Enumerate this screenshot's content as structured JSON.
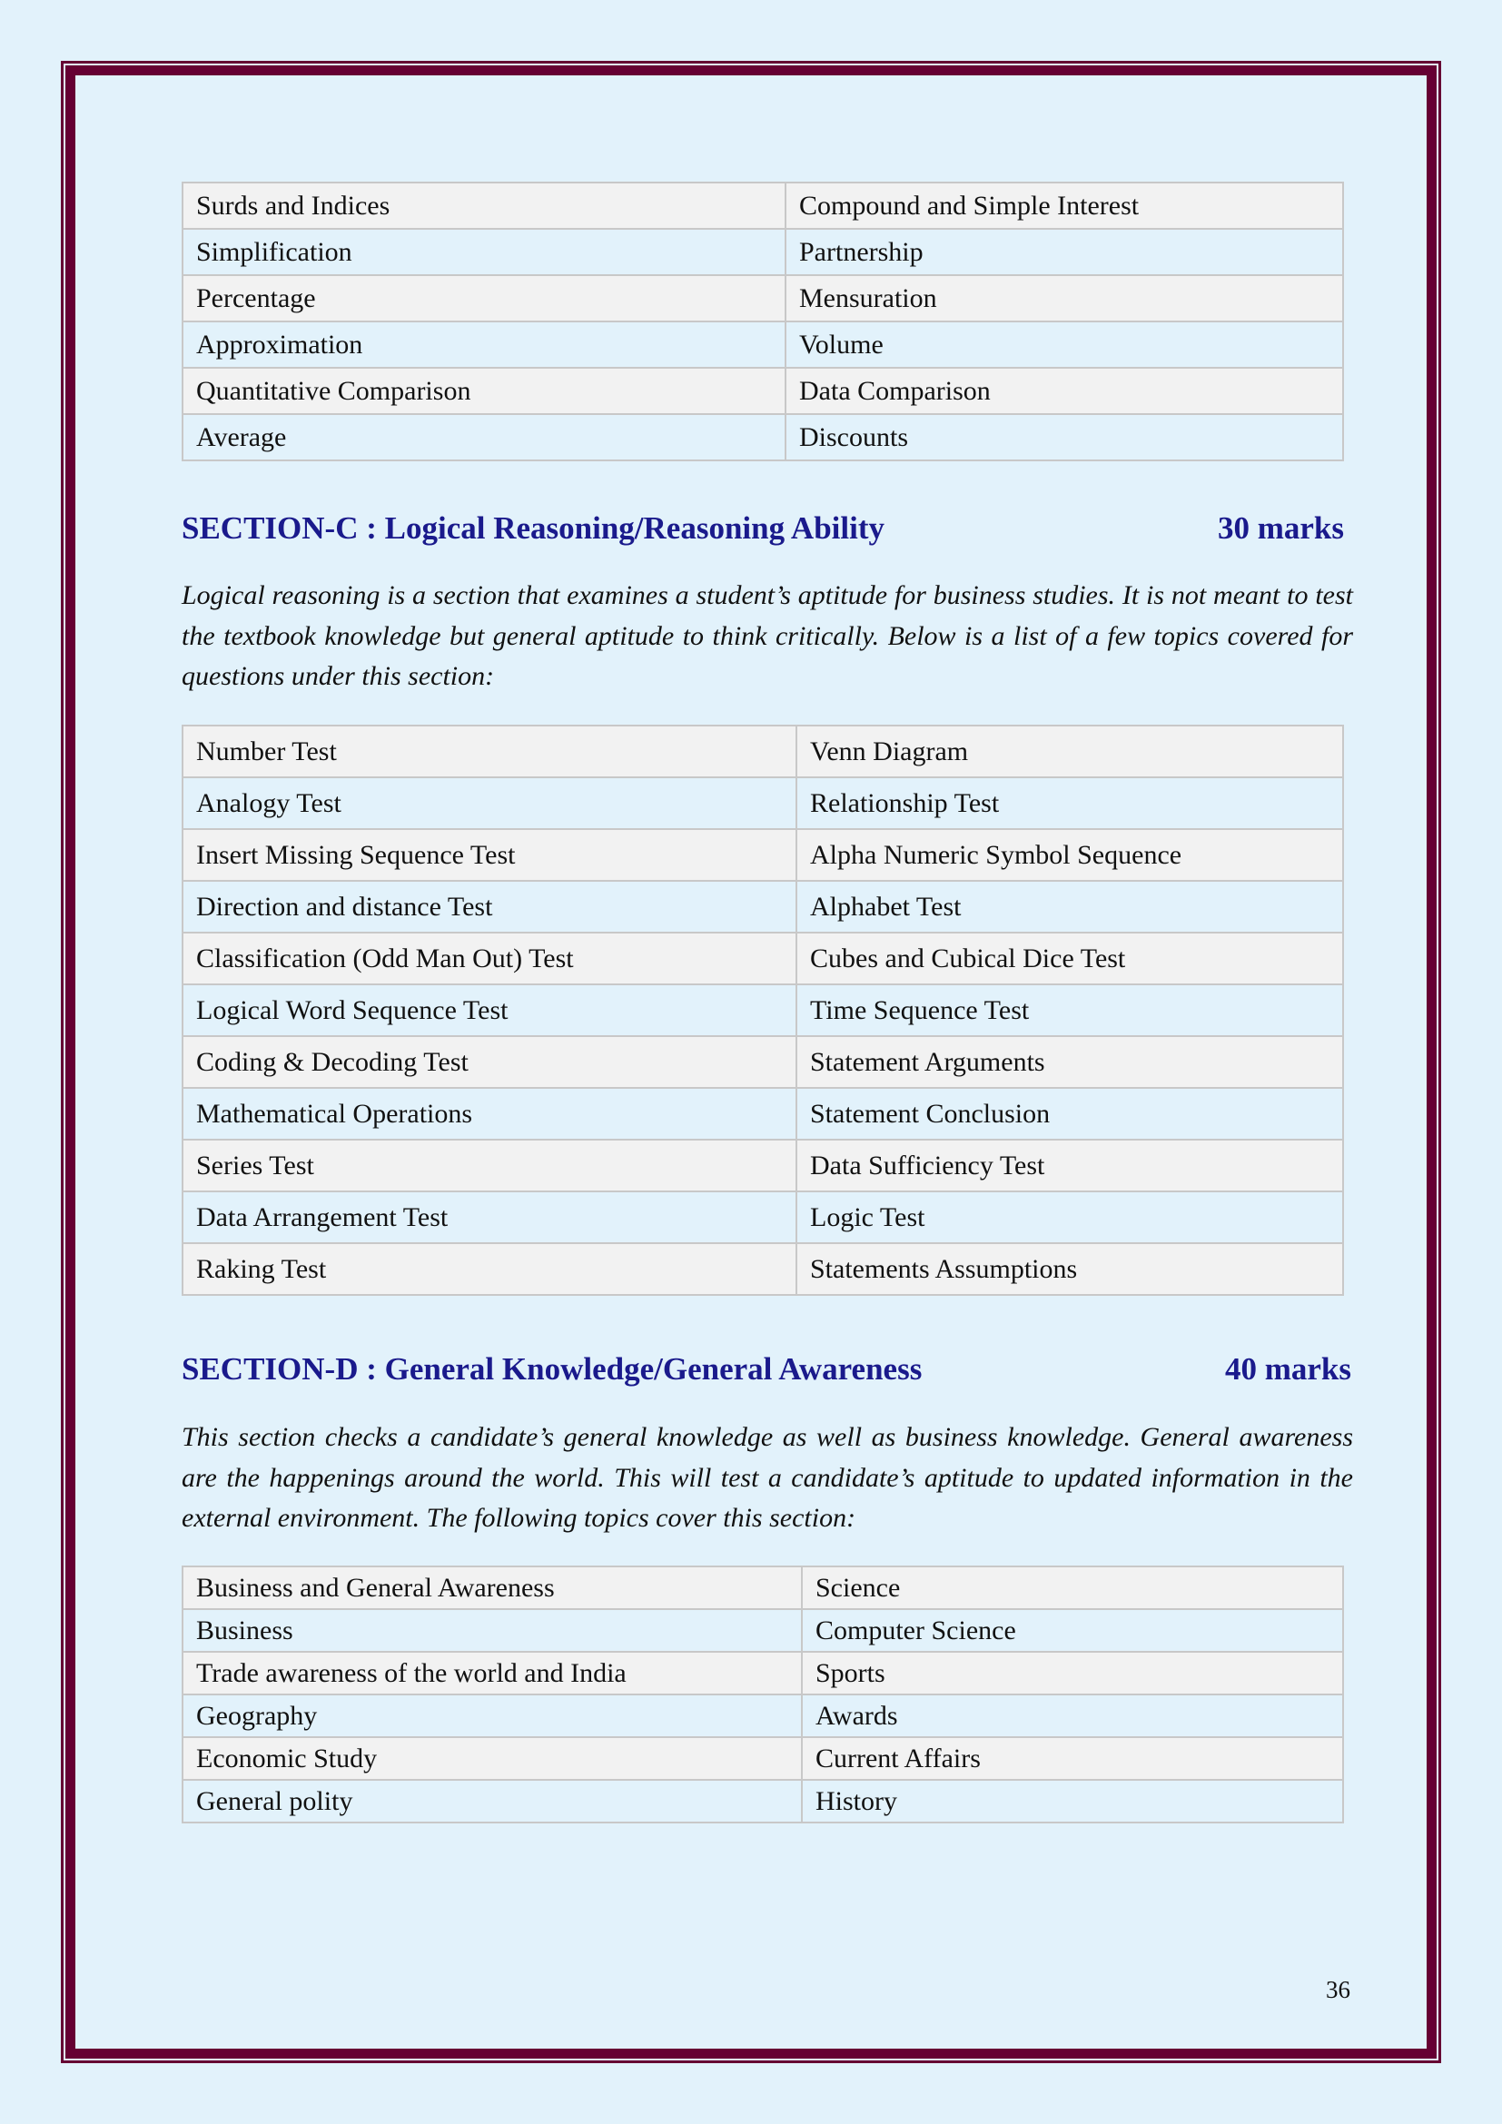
{
  "colors": {
    "background": "#e2f2fb",
    "border": "#660033",
    "heading": "#1a1a8c",
    "row_alt": "#f2f2f2"
  },
  "table_b": [
    [
      "Surds and Indices",
      "Compound and Simple Interest"
    ],
    [
      "Simplification",
      "Partnership"
    ],
    [
      "Percentage",
      "Mensuration"
    ],
    [
      "Approximation",
      "Volume"
    ],
    [
      "Quantitative Comparison",
      "Data Comparison"
    ],
    [
      "Average",
      "Discounts"
    ]
  ],
  "section_c": {
    "title": "SECTION-C : Logical Reasoning/Reasoning Ability",
    "marks": "30 marks",
    "description": "Logical reasoning is a section that examines a student’s aptitude for business studies. It is not meant to test the textbook knowledge but general aptitude to think critically. Below is a list of a few topics covered for questions under this section:",
    "topics": [
      [
        "Number Test",
        "Venn Diagram"
      ],
      [
        "Analogy Test",
        "Relationship Test"
      ],
      [
        "Insert Missing Sequence Test",
        "Alpha Numeric Symbol Sequence"
      ],
      [
        "Direction and distance Test",
        "Alphabet Test"
      ],
      [
        "Classification (Odd Man Out) Test",
        "Cubes and Cubical Dice Test"
      ],
      [
        "Logical Word Sequence Test",
        "Time Sequence Test"
      ],
      [
        "Coding & Decoding Test",
        "Statement Arguments"
      ],
      [
        "Mathematical Operations",
        "Statement Conclusion"
      ],
      [
        "Series Test",
        "Data Sufficiency Test"
      ],
      [
        "Data Arrangement Test",
        "Logic Test"
      ],
      [
        "Raking Test",
        "Statements Assumptions"
      ]
    ]
  },
  "section_d": {
    "title": "SECTION-D : General Knowledge/General Awareness",
    "marks": "40 marks",
    "description": "This section checks a candidate’s general knowledge as well as business knowledge. General awareness are the happenings around the world. This will test a candidate’s aptitude to updated information in the external environment. The following topics cover this section:",
    "topics": [
      [
        "Business and General Awareness",
        "Science"
      ],
      [
        "Business",
        "Computer Science"
      ],
      [
        "Trade awareness of the world and India",
        "Sports"
      ],
      [
        "Geography",
        "Awards"
      ],
      [
        "Economic Study",
        "Current Affairs"
      ],
      [
        "General polity",
        "History"
      ]
    ]
  },
  "page_number": "36"
}
